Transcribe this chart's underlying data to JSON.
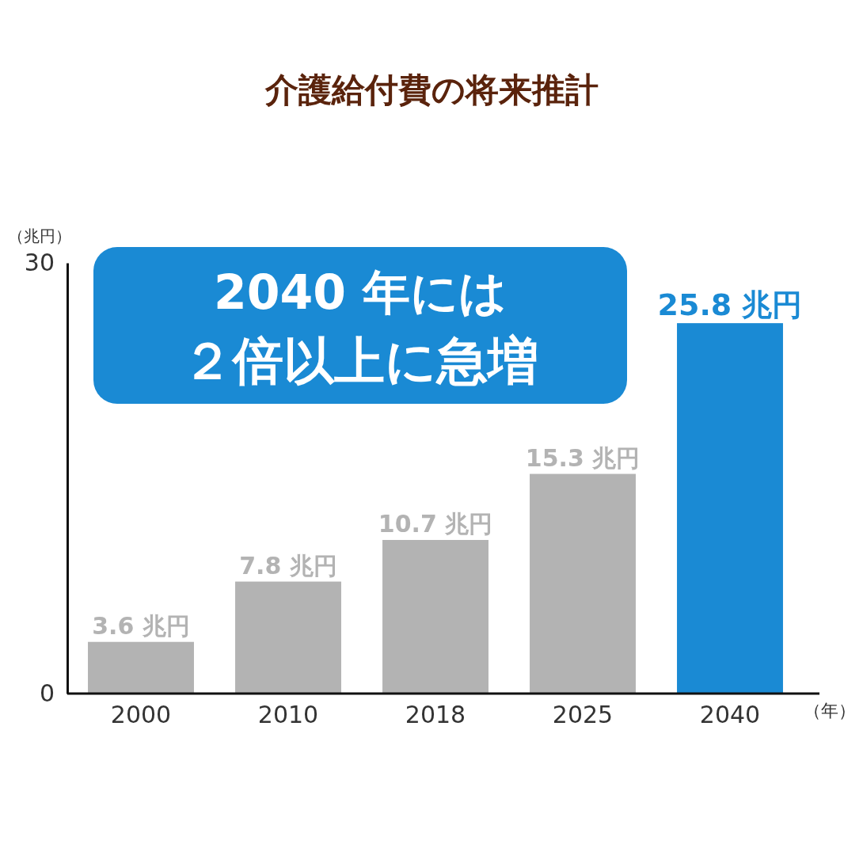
{
  "chart_data": {
    "type": "bar",
    "title": "介護給付費の将来推計",
    "ylabel": "（兆円）",
    "xlabel": "（年）",
    "categories": [
      "2000",
      "2010",
      "2018",
      "2025",
      "2040"
    ],
    "values": [
      3.6,
      7.8,
      10.7,
      15.3,
      25.8
    ],
    "colors": [
      "#b3b3b3",
      "#b3b3b3",
      "#b3b3b3",
      "#b3b3b3",
      "#1a8ad4"
    ],
    "value_labels": [
      "3.6 兆円",
      "7.8 兆円",
      "10.7 兆円",
      "15.3 兆円",
      "25.8 兆円"
    ],
    "ylim": [
      0,
      30
    ],
    "yticks": [
      0,
      30
    ],
    "grid": false,
    "annotations": [
      "2040 年には",
      "２倍以上に急増"
    ]
  }
}
